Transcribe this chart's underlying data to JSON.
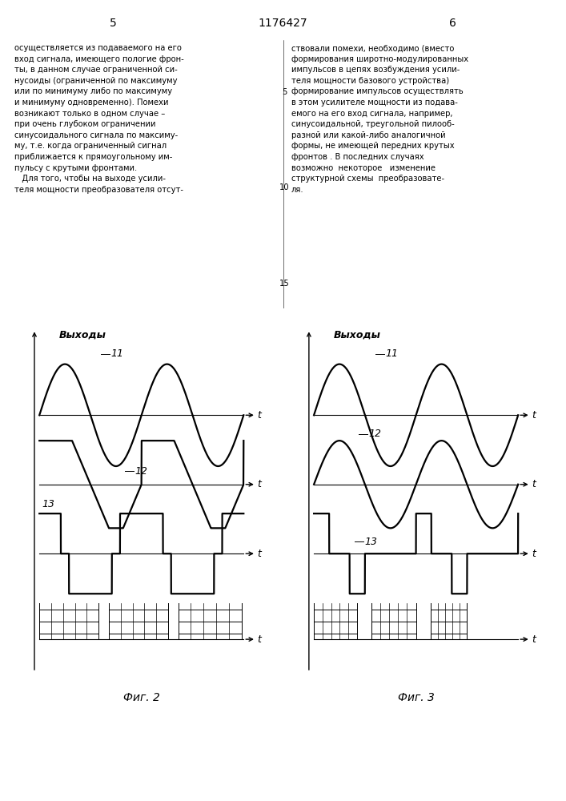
{
  "title_header": "1176427",
  "page_left": "5",
  "page_right": "6",
  "fig2_caption": "Фиг. 2",
  "fig3_caption": "Фиг. 3",
  "ylabel": "Выходы",
  "xlabel": "t",
  "label_11": "11",
  "label_12": "12",
  "label_13": "13",
  "text_color": "#000000",
  "bg_color": "#ffffff",
  "line_color": "#000000",
  "lw_signal": 1.6,
  "lw_axis": 1.0,
  "lw_baseline": 0.8,
  "fontsize_label": 9,
  "fontsize_text": 7.2,
  "fontsize_caption": 10,
  "left_text": "осуществляется из подаваемого на его\nвход сигнала, имеющего пологие фрон-\nты, в данном случае ограниченной си-\nнусоиды (ограниченной по максимуму\nили по минимуму либо по максимуму\nи минимуму одновременно). Помехи\nвозникают только в одном случае –\nпри очень глубоком ограничении\nсинусоидального сигнала по максиму-\nму, т.е. когда ограниченный сигнал\nприближается к прямоугольному им-\nпульсу с крутыми фронтами.\n   Для того, чтобы на выходе усили-\nтеля мощности преобразователя отсут-",
  "right_text": "ствовали помехи, необходимо (вместо\nформирования широтно-модулированных\nимпульсов в цепях возбуждения усили-\nтеля мощности базового устройства)\nформирование импульсов осуществлять\nв этом усилителе мощности из подава-\nемого на его вход сигнала, например,\nсинусоидальной, треугольной пилооб-\nразной или какой-либо аналогичной\nформы, не имеющей передних крутых\nфронтов . В последних случаях\nвозможно  некоторое   изменение\nструктурной схемы  преобразовате-\nля."
}
